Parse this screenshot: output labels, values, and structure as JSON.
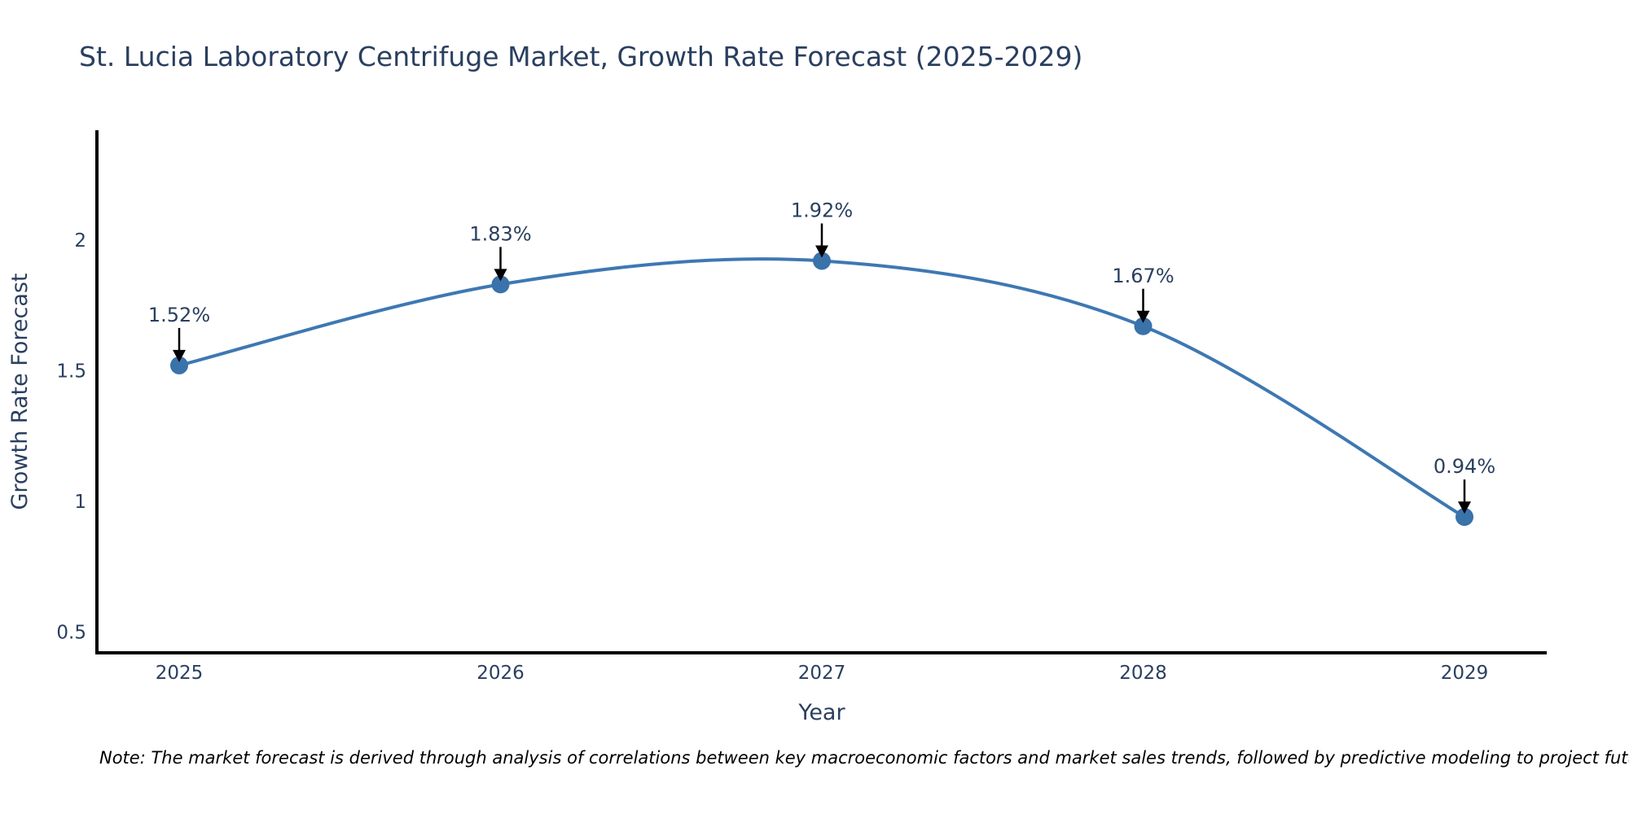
{
  "title": "St. Lucia Laboratory Centrifuge Market, Growth Rate Forecast (2025-2029)",
  "note": "Note: The market forecast is derived through analysis of correlations between key macroeconomic factors and market sales trends, followed by predictive modeling to project future sales",
  "chart_data": {
    "type": "line",
    "title": "St. Lucia Laboratory Centrifuge Market, Growth Rate Forecast (2025-2029)",
    "x": [
      2025,
      2026,
      2027,
      2028,
      2029
    ],
    "xticks": [
      "2025",
      "2026",
      "2027",
      "2028",
      "2029"
    ],
    "series": [
      {
        "name": "Growth Rate Forecast",
        "values": [
          1.52,
          1.83,
          1.92,
          1.67,
          0.94
        ]
      }
    ],
    "point_labels": [
      "1.52%",
      "1.83%",
      "1.92%",
      "1.67%",
      "0.94%"
    ],
    "xlabel": "Year",
    "ylabel": "Growth Rate Forecast",
    "yticks": [
      0.5,
      1,
      1.5,
      2
    ],
    "ytick_labels": [
      "0.5",
      "1",
      "1.5",
      "2"
    ],
    "ylim": [
      0.42,
      2.42
    ],
    "line_shape": "spline",
    "grid": false,
    "legend_position": "none",
    "colors": {
      "line": "#3e78b2",
      "marker": "#3a72aa",
      "text": "#2a3f5f",
      "axis": "#000000",
      "annotation_arrow": "#000000",
      "background": "#ffffff"
    }
  }
}
